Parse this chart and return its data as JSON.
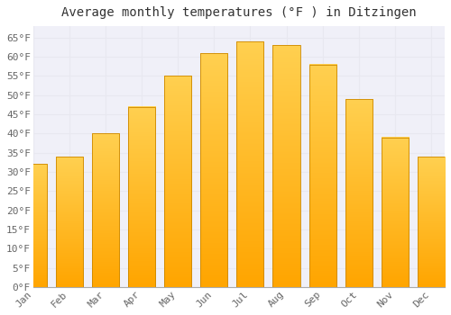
{
  "title": "Average monthly temperatures (°F ) in Ditzingen",
  "months": [
    "Jan",
    "Feb",
    "Mar",
    "Apr",
    "May",
    "Jun",
    "Jul",
    "Aug",
    "Sep",
    "Oct",
    "Nov",
    "Dec"
  ],
  "values": [
    32,
    34,
    40,
    47,
    55,
    61,
    64,
    63,
    58,
    49,
    39,
    34
  ],
  "bar_color_top": "#FFD050",
  "bar_color_bottom": "#FFA500",
  "bar_edge_color": "#CC8800",
  "ylim": [
    0,
    68
  ],
  "yticks": [
    0,
    5,
    10,
    15,
    20,
    25,
    30,
    35,
    40,
    45,
    50,
    55,
    60,
    65
  ],
  "ytick_labels": [
    "0°F",
    "5°F",
    "10°F",
    "15°F",
    "20°F",
    "25°F",
    "30°F",
    "35°F",
    "40°F",
    "45°F",
    "50°F",
    "55°F",
    "60°F",
    "65°F"
  ],
  "background_color": "#ffffff",
  "plot_bg_color": "#f0f0f8",
  "grid_color": "#e8e8f0",
  "title_fontsize": 10,
  "tick_fontsize": 8,
  "font_family": "monospace"
}
